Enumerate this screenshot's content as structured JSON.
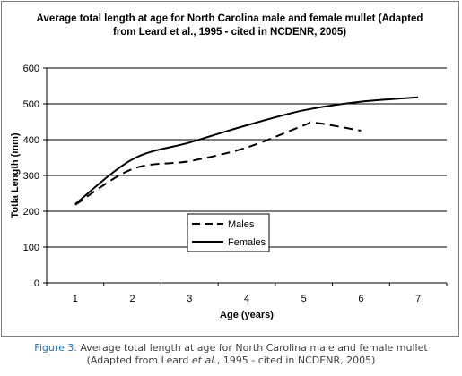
{
  "chart_data": {
    "type": "line",
    "title_lines": [
      "Average total length at age for North Carolina male and female mullet (Adapted",
      "from Leard et al., 1995 - cited in NCDENR, 2005)"
    ],
    "xlabel": "Age (years)",
    "ylabel": "Totla Length (mm)",
    "xlim": [
      0.5,
      7.5
    ],
    "ylim": [
      0,
      600
    ],
    "x_ticks": [
      1,
      2,
      3,
      4,
      5,
      6,
      7
    ],
    "y_ticks": [
      0,
      100,
      200,
      300,
      400,
      500,
      600
    ],
    "grid": "horizontal",
    "legend_position": "lower-left",
    "series": [
      {
        "name": "Males",
        "line_style": "dashed",
        "color": "#000000",
        "x": [
          1,
          2,
          3,
          4,
          5,
          5.2,
          6
        ],
        "y": [
          218,
          318,
          340,
          378,
          440,
          447,
          425
        ]
      },
      {
        "name": "Females",
        "line_style": "solid",
        "color": "#000000",
        "x": [
          1,
          2,
          3,
          4,
          5,
          6,
          7
        ],
        "y": [
          220,
          345,
          392,
          440,
          482,
          506,
          518
        ]
      }
    ]
  },
  "caption": {
    "label": "Figure 3.",
    "line1_text": " Average total length at age for North Carolina male and female mullet",
    "line2_pre": "(Adapted from Leard ",
    "line2_italic": "et al.",
    "line2_post": ", 1995 - cited in NCDENR, 2005)"
  }
}
